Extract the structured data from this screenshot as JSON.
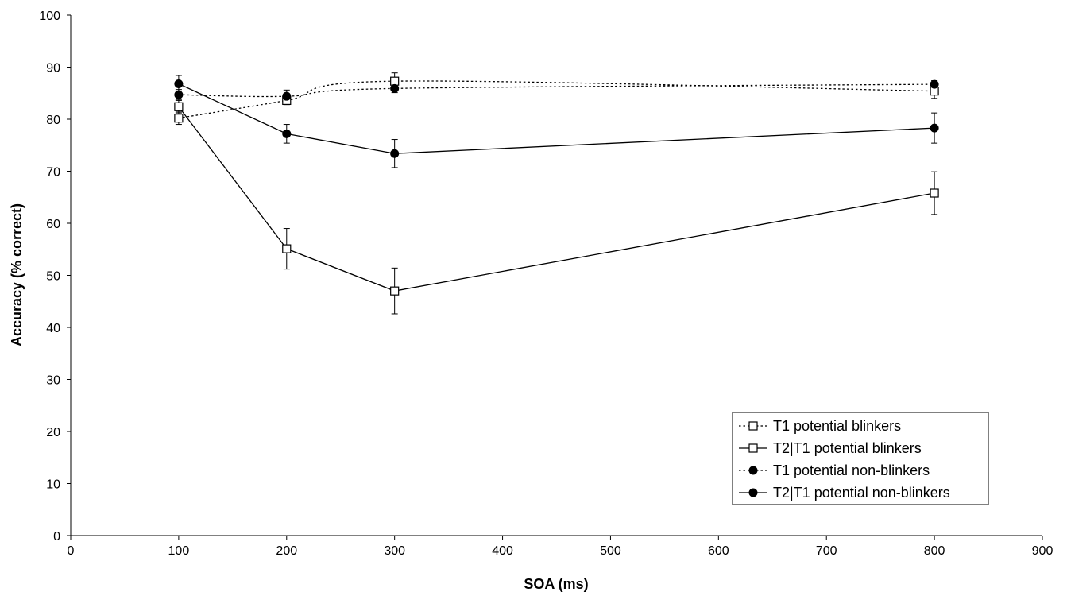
{
  "chart_data": {
    "type": "line",
    "title": "",
    "xlabel": "SOA (ms)",
    "ylabel": "Accuracy (% correct)",
    "xlim": [
      0,
      900
    ],
    "ylim": [
      0,
      100
    ],
    "xticks": [
      0,
      100,
      200,
      300,
      400,
      500,
      600,
      700,
      800,
      900
    ],
    "yticks": [
      0,
      10,
      20,
      30,
      40,
      50,
      60,
      70,
      80,
      90,
      100
    ],
    "grid": false,
    "legend_position": "bottom-right",
    "x": [
      100,
      200,
      300,
      800
    ],
    "series": [
      {
        "name": "T1 potential blinkers",
        "values": [
          80.2,
          83.6,
          87.3,
          85.4
        ],
        "error": [
          1.2,
          0.8,
          1.6,
          1.4
        ],
        "marker": "open-square",
        "line_style": "dotted",
        "line_shape": "smooth"
      },
      {
        "name": "T2|T1 potential blinkers",
        "values": [
          82.4,
          55.1,
          47.0,
          65.8
        ],
        "error": [
          1.2,
          3.9,
          4.4,
          4.1
        ],
        "marker": "open-square",
        "line_style": "solid",
        "line_shape": "straight"
      },
      {
        "name": "T1 potential non-blinkers",
        "values": [
          84.7,
          84.4,
          85.9,
          86.7
        ],
        "error": [
          1.0,
          1.2,
          0.8,
          0.7
        ],
        "marker": "filled-circle",
        "line_style": "dotted",
        "line_shape": "smooth"
      },
      {
        "name": "T2|T1 potential non-blinkers",
        "values": [
          86.8,
          77.2,
          73.4,
          78.3
        ],
        "error": [
          1.6,
          1.8,
          2.7,
          2.9
        ],
        "marker": "filled-circle",
        "line_style": "solid",
        "line_shape": "straight"
      }
    ],
    "colors": {
      "line": "#000000",
      "marker_fill_open": "#ffffff",
      "marker_fill_filled": "#000000"
    }
  }
}
